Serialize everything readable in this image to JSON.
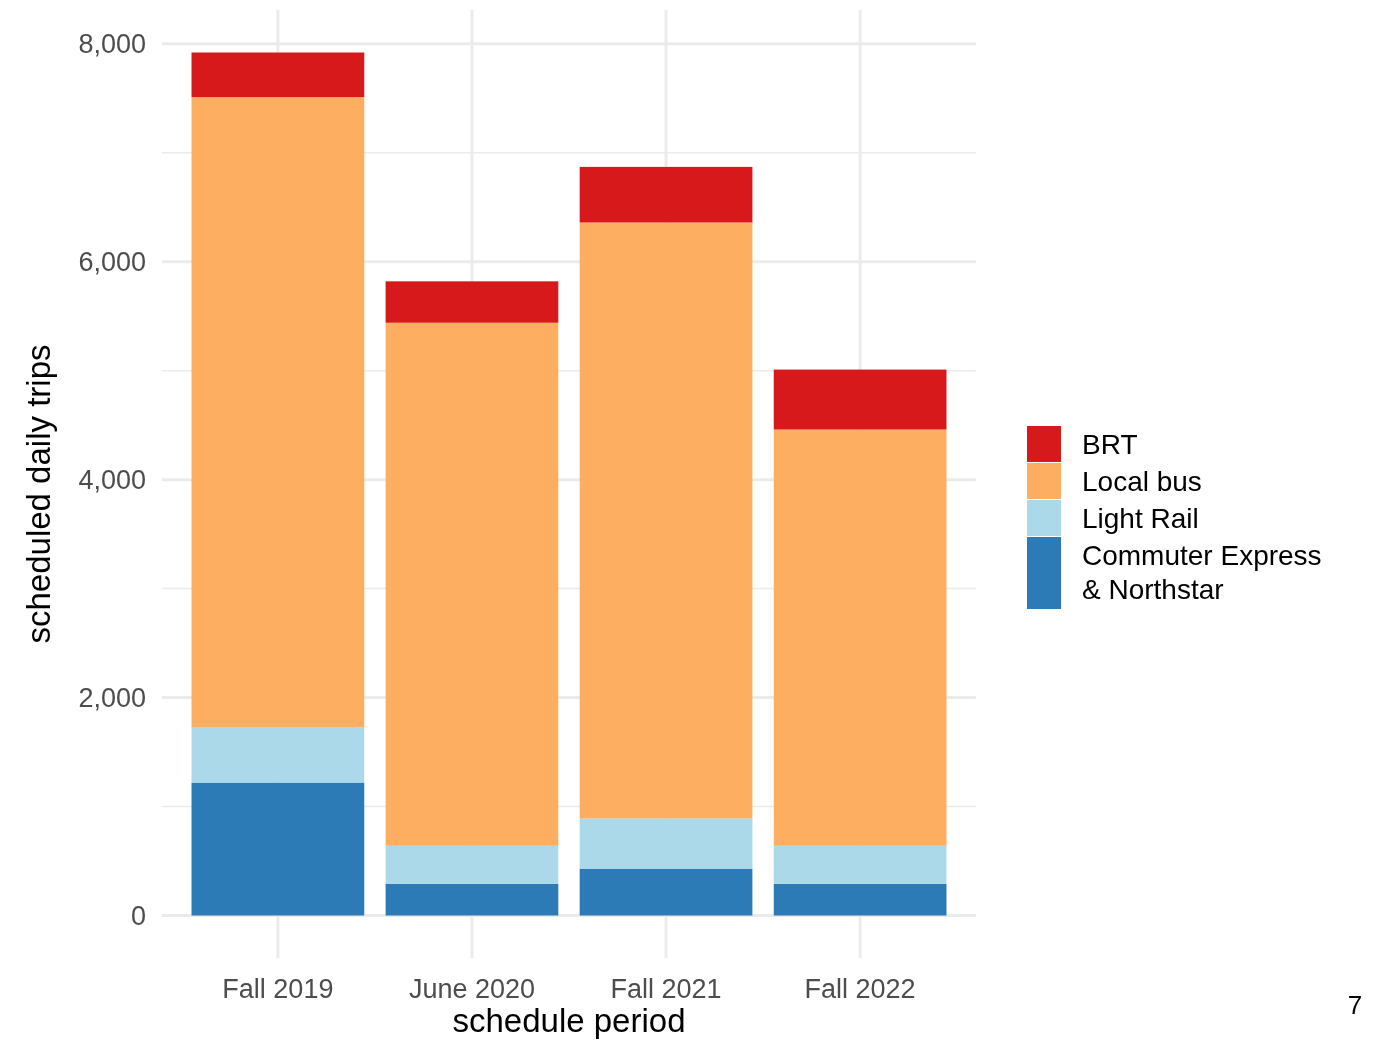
{
  "chart_data": {
    "type": "bar",
    "stacked": true,
    "xlabel": "schedule period",
    "ylabel": "scheduled daily trips",
    "categories": [
      "Fall 2019",
      "June 2020",
      "Fall 2021",
      "Fall 2022"
    ],
    "series": [
      {
        "name": "Commuter Express & Northstar",
        "color": "#2c7bb6",
        "values": [
          1220,
          290,
          430,
          290
        ]
      },
      {
        "name": "Light Rail",
        "color": "#abd9e9",
        "values": [
          510,
          350,
          460,
          350
        ]
      },
      {
        "name": "Local bus",
        "color": "#fdae61",
        "values": [
          5780,
          4800,
          5470,
          3820
        ]
      },
      {
        "name": "BRT",
        "color": "#d7191c",
        "values": [
          410,
          380,
          510,
          550
        ]
      }
    ],
    "ylim": [
      -390,
      8310
    ],
    "yticks": [
      0,
      {
        "value": 1000,
        "label": null
      },
      {
        "value": 2000,
        "label": "2,000"
      },
      {
        "value": 3000,
        "label": null
      },
      {
        "value": 4000,
        "label": "4,000"
      },
      {
        "value": 5000,
        "label": null
      },
      {
        "value": 6000,
        "label": "6,000"
      },
      {
        "value": 7000,
        "label": null
      },
      {
        "value": 8000,
        "label": "8,000"
      }
    ],
    "grid": true,
    "legend": "right",
    "annotations": [
      "7"
    ]
  }
}
